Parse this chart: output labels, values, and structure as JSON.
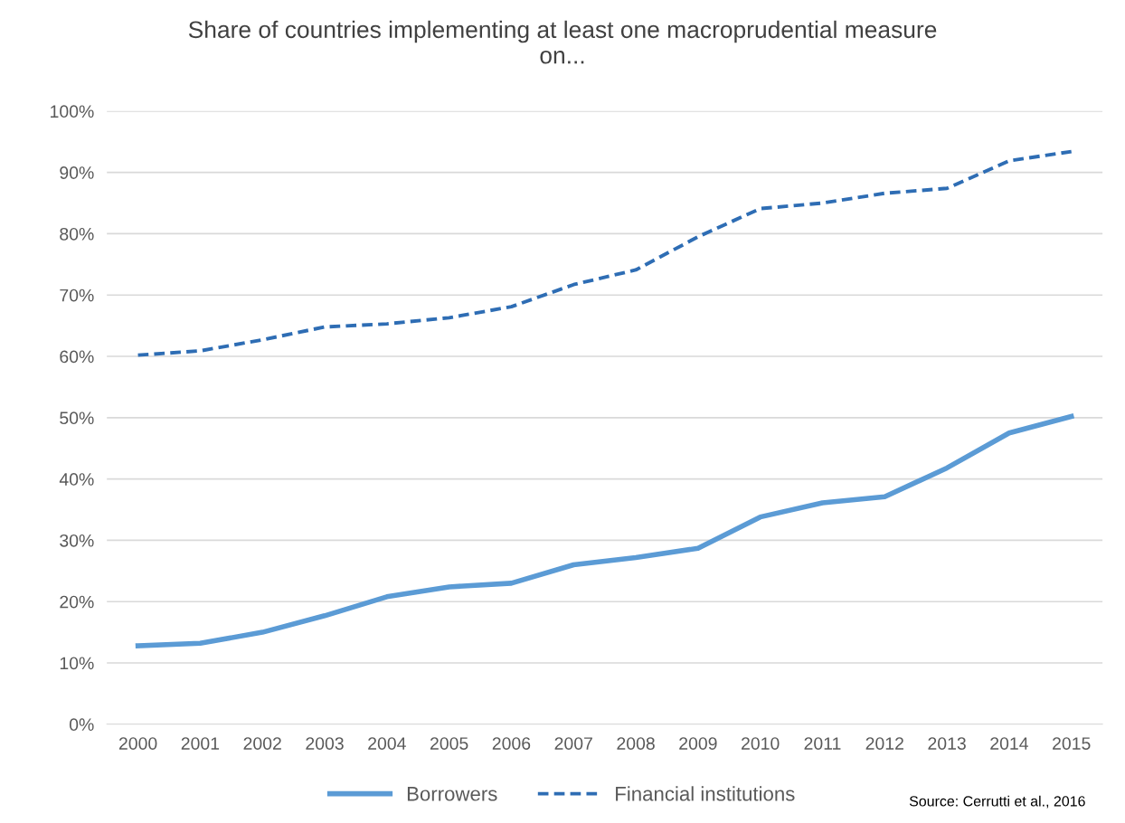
{
  "chart_data": {
    "type": "line",
    "title": "Share of countries implementing at least one macroprudential measure\non...",
    "categories": [
      "2000",
      "2001",
      "2002",
      "2003",
      "2004",
      "2005",
      "2006",
      "2007",
      "2008",
      "2009",
      "2010",
      "2011",
      "2012",
      "2013",
      "2014",
      "2015"
    ],
    "series": [
      {
        "name": "Borrowers",
        "color": "#5b9bd5",
        "line_style": "solid",
        "values": [
          12.8,
          13.2,
          15.0,
          17.7,
          20.8,
          22.4,
          23.0,
          26.0,
          27.2,
          28.7,
          33.8,
          36.1,
          37.1,
          41.8,
          47.5,
          50.2
        ]
      },
      {
        "name": "Financial institutions",
        "color": "#2e6db4",
        "line_style": "dashed",
        "values": [
          60.2,
          60.9,
          62.7,
          64.8,
          65.3,
          66.3,
          68.1,
          71.7,
          74.1,
          79.5,
          84.1,
          85.0,
          86.6,
          87.4,
          91.9,
          93.4
        ]
      }
    ],
    "ylim": [
      0,
      100
    ],
    "yticks": [
      {
        "value": 0,
        "label": "0%"
      },
      {
        "value": 10,
        "label": "10%"
      },
      {
        "value": 20,
        "label": "20%"
      },
      {
        "value": 30,
        "label": "30%"
      },
      {
        "value": 40,
        "label": "40%"
      },
      {
        "value": 50,
        "label": "50%"
      },
      {
        "value": 60,
        "label": "60%"
      },
      {
        "value": 70,
        "label": "70%"
      },
      {
        "value": 80,
        "label": "80%"
      },
      {
        "value": 90,
        "label": "90%"
      },
      {
        "value": 100,
        "label": "100%"
      }
    ],
    "grid": "y",
    "legend": "bottom",
    "marker": "none",
    "annotations": [
      "Source: Cerrutti et al., 2016"
    ]
  }
}
